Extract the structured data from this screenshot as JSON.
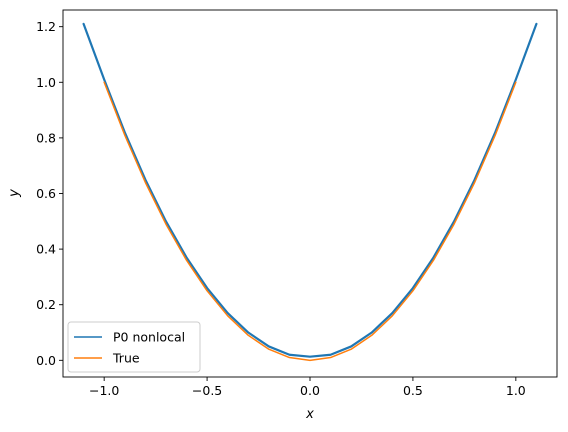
{
  "chart_data": {
    "type": "line",
    "xlabel": "x",
    "ylabel": "y",
    "xlim": [
      -1.2,
      1.2
    ],
    "ylim": [
      -0.06,
      1.26
    ],
    "xticks": [
      -1.0,
      -0.5,
      0.0,
      0.5,
      1.0
    ],
    "xtick_labels": [
      "−1.0",
      "−0.5",
      "0.0",
      "0.5",
      "1.0"
    ],
    "yticks": [
      0.0,
      0.2,
      0.4,
      0.6,
      0.8,
      1.0,
      1.2
    ],
    "ytick_labels": [
      "0.0",
      "0.2",
      "0.4",
      "0.6",
      "0.8",
      "1.0",
      "1.2"
    ],
    "grid": false,
    "legend": {
      "position": "lower-left",
      "entries": [
        "P0 nonlocal",
        "True"
      ]
    },
    "series": [
      {
        "name": "P0 nonlocal",
        "color": "#1f77b4",
        "x": [
          -1.1,
          -1.0,
          -0.9,
          -0.8,
          -0.7,
          -0.6,
          -0.5,
          -0.4,
          -0.3,
          -0.2,
          -0.1,
          0.0,
          0.1,
          0.2,
          0.3,
          0.4,
          0.5,
          0.6,
          0.7,
          0.8,
          0.9,
          1.0,
          1.1
        ],
        "y": [
          1.21,
          1.01,
          0.82,
          0.65,
          0.5,
          0.37,
          0.26,
          0.17,
          0.1,
          0.05,
          0.02,
          0.013,
          0.02,
          0.05,
          0.1,
          0.17,
          0.26,
          0.37,
          0.5,
          0.65,
          0.82,
          1.01,
          1.21
        ]
      },
      {
        "name": "True",
        "color": "#ff7f0e",
        "x": [
          -1.0,
          -0.9,
          -0.8,
          -0.7,
          -0.6,
          -0.5,
          -0.4,
          -0.3,
          -0.2,
          -0.1,
          0.0,
          0.1,
          0.2,
          0.3,
          0.4,
          0.5,
          0.6,
          0.7,
          0.8,
          0.9,
          1.0
        ],
        "y": [
          1.0,
          0.81,
          0.64,
          0.49,
          0.36,
          0.25,
          0.16,
          0.09,
          0.04,
          0.01,
          0.0,
          0.01,
          0.04,
          0.09,
          0.16,
          0.25,
          0.36,
          0.49,
          0.64,
          0.81,
          1.0
        ]
      }
    ]
  }
}
